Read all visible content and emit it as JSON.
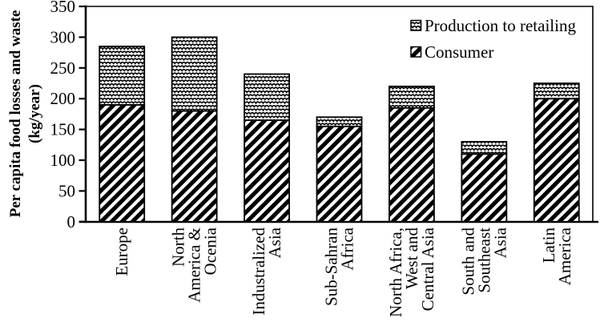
{
  "figure": {
    "background": "#ffffff",
    "ink": "#000000"
  },
  "y_axis": {
    "title_line1": "Per capita food losses and waste",
    "title_line2": "(kg/year)",
    "min": 0,
    "max": 350,
    "tick_step": 50
  },
  "legend": {
    "position": "top-right",
    "items": [
      {
        "label": "Production to retailing",
        "pattern": "waves"
      },
      {
        "label": "Consumer",
        "pattern": "hatch"
      }
    ]
  },
  "chart_data": {
    "type": "bar",
    "stacked": true,
    "title": "",
    "xlabel": "",
    "ylabel": "Per capita food losses and waste (kg/year)",
    "ylim": [
      0,
      350
    ],
    "yticks": [
      0,
      50,
      100,
      150,
      200,
      250,
      300,
      350
    ],
    "grid": false,
    "legend_position": "top-right",
    "categories": [
      "Europe",
      "North America & Ocenia",
      "Industralized Asia",
      "Sub-Sahran Africa",
      "North Africa, West and Central Asia",
      "South and Southeast Asia",
      "Latin America"
    ],
    "category_label_lines": [
      [
        "Europe"
      ],
      [
        "North",
        "America &",
        "Ocenia"
      ],
      [
        "Industralized",
        "Asia"
      ],
      [
        "Sub-Sahran",
        "Africa"
      ],
      [
        "North Africa,",
        "West and",
        "Central Asia"
      ],
      [
        "South and",
        "Southeast",
        "Asia"
      ],
      [
        "Latin",
        "America"
      ]
    ],
    "series": [
      {
        "name": "Consumer",
        "pattern": "hatch",
        "stack_position": "bottom",
        "values": [
          190,
          180,
          165,
          155,
          185,
          110,
          200
        ]
      },
      {
        "name": "Production to retailing",
        "pattern": "waves",
        "stack_position": "top",
        "values": [
          95,
          120,
          75,
          15,
          35,
          20,
          25
        ]
      }
    ],
    "stack_totals": [
      285,
      300,
      240,
      170,
      220,
      130,
      225
    ]
  }
}
